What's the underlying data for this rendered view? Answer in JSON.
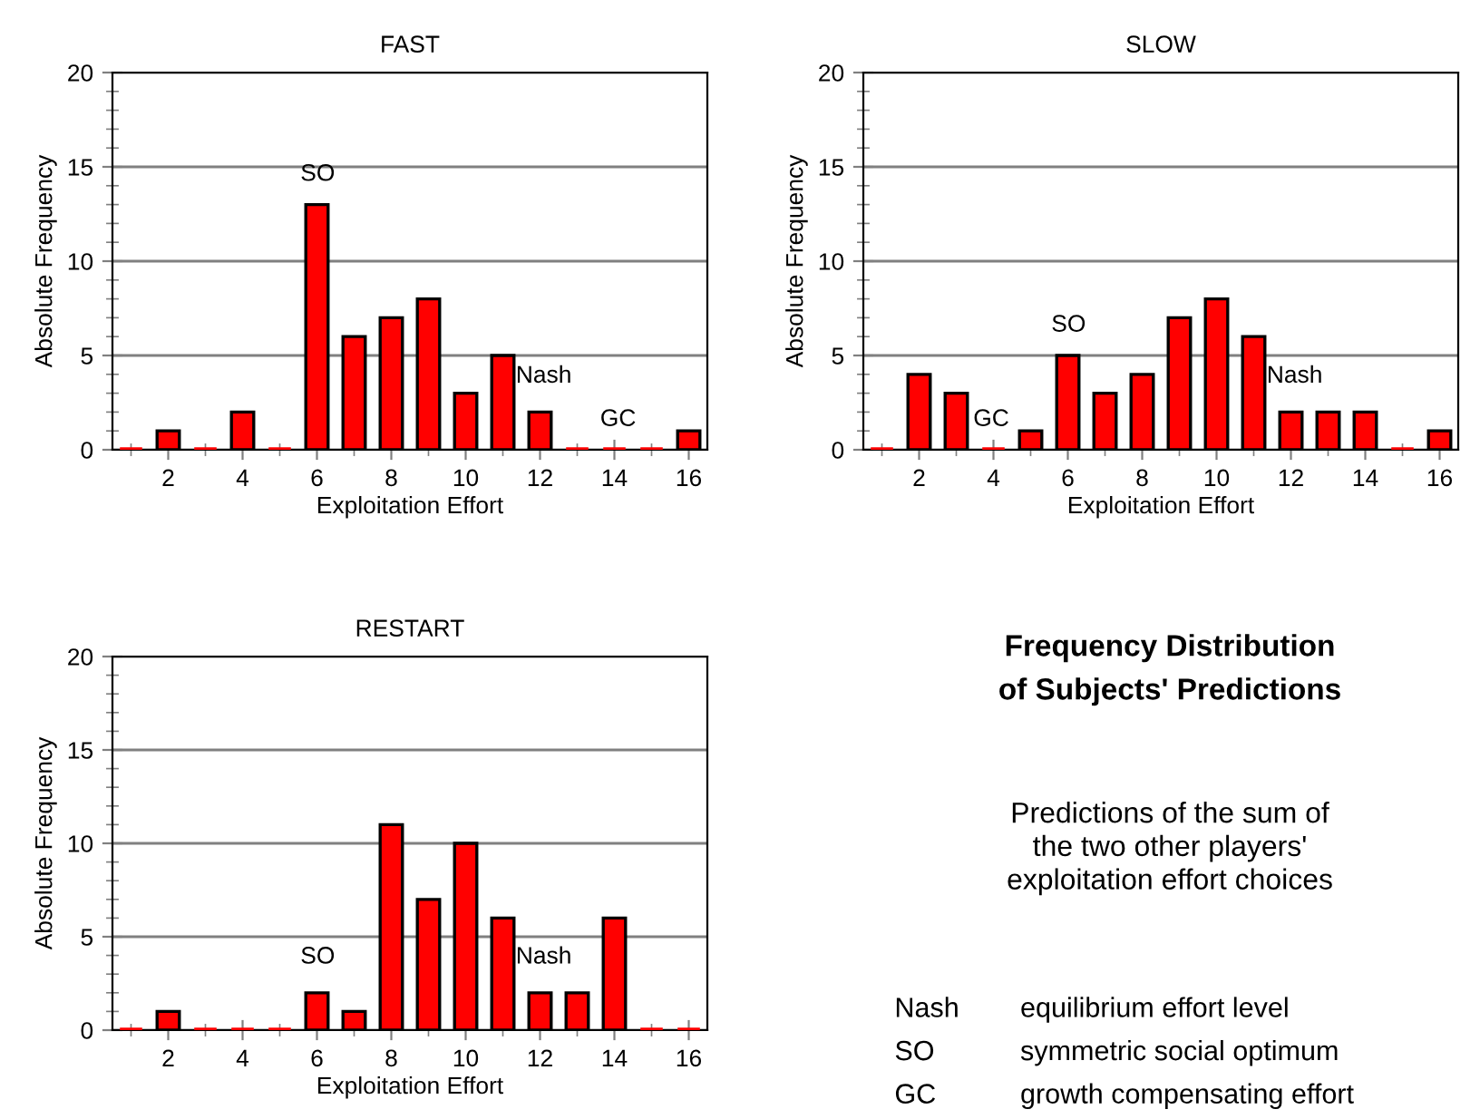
{
  "chart_data": [
    {
      "type": "bar",
      "title": "FAST",
      "xlabel": "Exploitation Effort",
      "ylabel": "Absolute Frequency",
      "x": [
        1,
        2,
        3,
        4,
        5,
        6,
        7,
        8,
        9,
        10,
        11,
        12,
        13,
        14,
        15,
        16
      ],
      "values": [
        0,
        1,
        0,
        2,
        0,
        13,
        6,
        7,
        8,
        3,
        5,
        2,
        0,
        0,
        0,
        1
      ],
      "color": "#ff0000",
      "xlim": [
        0.5,
        16.5
      ],
      "xticks": [
        2,
        4,
        6,
        8,
        10,
        12,
        14,
        16
      ],
      "ylim": [
        0,
        20
      ],
      "yticks": [
        0,
        5,
        10,
        15,
        20
      ],
      "grid": "y",
      "annotations": [
        "SO",
        "Nash",
        "GC"
      ]
    },
    {
      "type": "bar",
      "title": "SLOW",
      "xlabel": "Exploitation Effort",
      "ylabel": "Absolute Frequency",
      "x": [
        1,
        2,
        3,
        4,
        5,
        6,
        7,
        8,
        9,
        10,
        11,
        12,
        13,
        14,
        15,
        16
      ],
      "values": [
        0,
        4,
        3,
        0,
        1,
        5,
        3,
        4,
        7,
        8,
        6,
        2,
        2,
        2,
        0,
        1
      ],
      "color": "#ff0000",
      "xlim": [
        0.5,
        16.5
      ],
      "xticks": [
        2,
        4,
        6,
        8,
        10,
        12,
        14,
        16
      ],
      "ylim": [
        0,
        20
      ],
      "yticks": [
        0,
        5,
        10,
        15,
        20
      ],
      "grid": "y",
      "annotations": [
        "GC",
        "SO",
        "Nash"
      ]
    },
    {
      "type": "bar",
      "title": "RESTART",
      "xlabel": "Exploitation Effort",
      "ylabel": "Absolute Frequency",
      "x": [
        1,
        2,
        3,
        4,
        5,
        6,
        7,
        8,
        9,
        10,
        11,
        12,
        13,
        14,
        15,
        16
      ],
      "values": [
        0,
        1,
        0,
        0,
        0,
        2,
        1,
        11,
        7,
        10,
        6,
        2,
        2,
        6,
        0,
        0
      ],
      "color": "#ff0000",
      "xlim": [
        0.5,
        16.5
      ],
      "xticks": [
        2,
        4,
        6,
        8,
        10,
        12,
        14,
        16
      ],
      "ylim": [
        0,
        20
      ],
      "yticks": [
        0,
        5,
        10,
        15,
        20
      ],
      "grid": "y",
      "annotations": [
        "SO",
        "Nash"
      ]
    },
    {
      "type": "other",
      "title": "Frequency Distribution\nof Subjects' Predictions",
      "subtitle": "Predictions of the sum of\nthe two other players'\nexploitation effort choices",
      "annotations": [
        "Nash",
        "equilibrium effort level",
        "SO",
        "symmetric social optimum",
        "GC",
        "growth compensating effort"
      ]
    }
  ]
}
